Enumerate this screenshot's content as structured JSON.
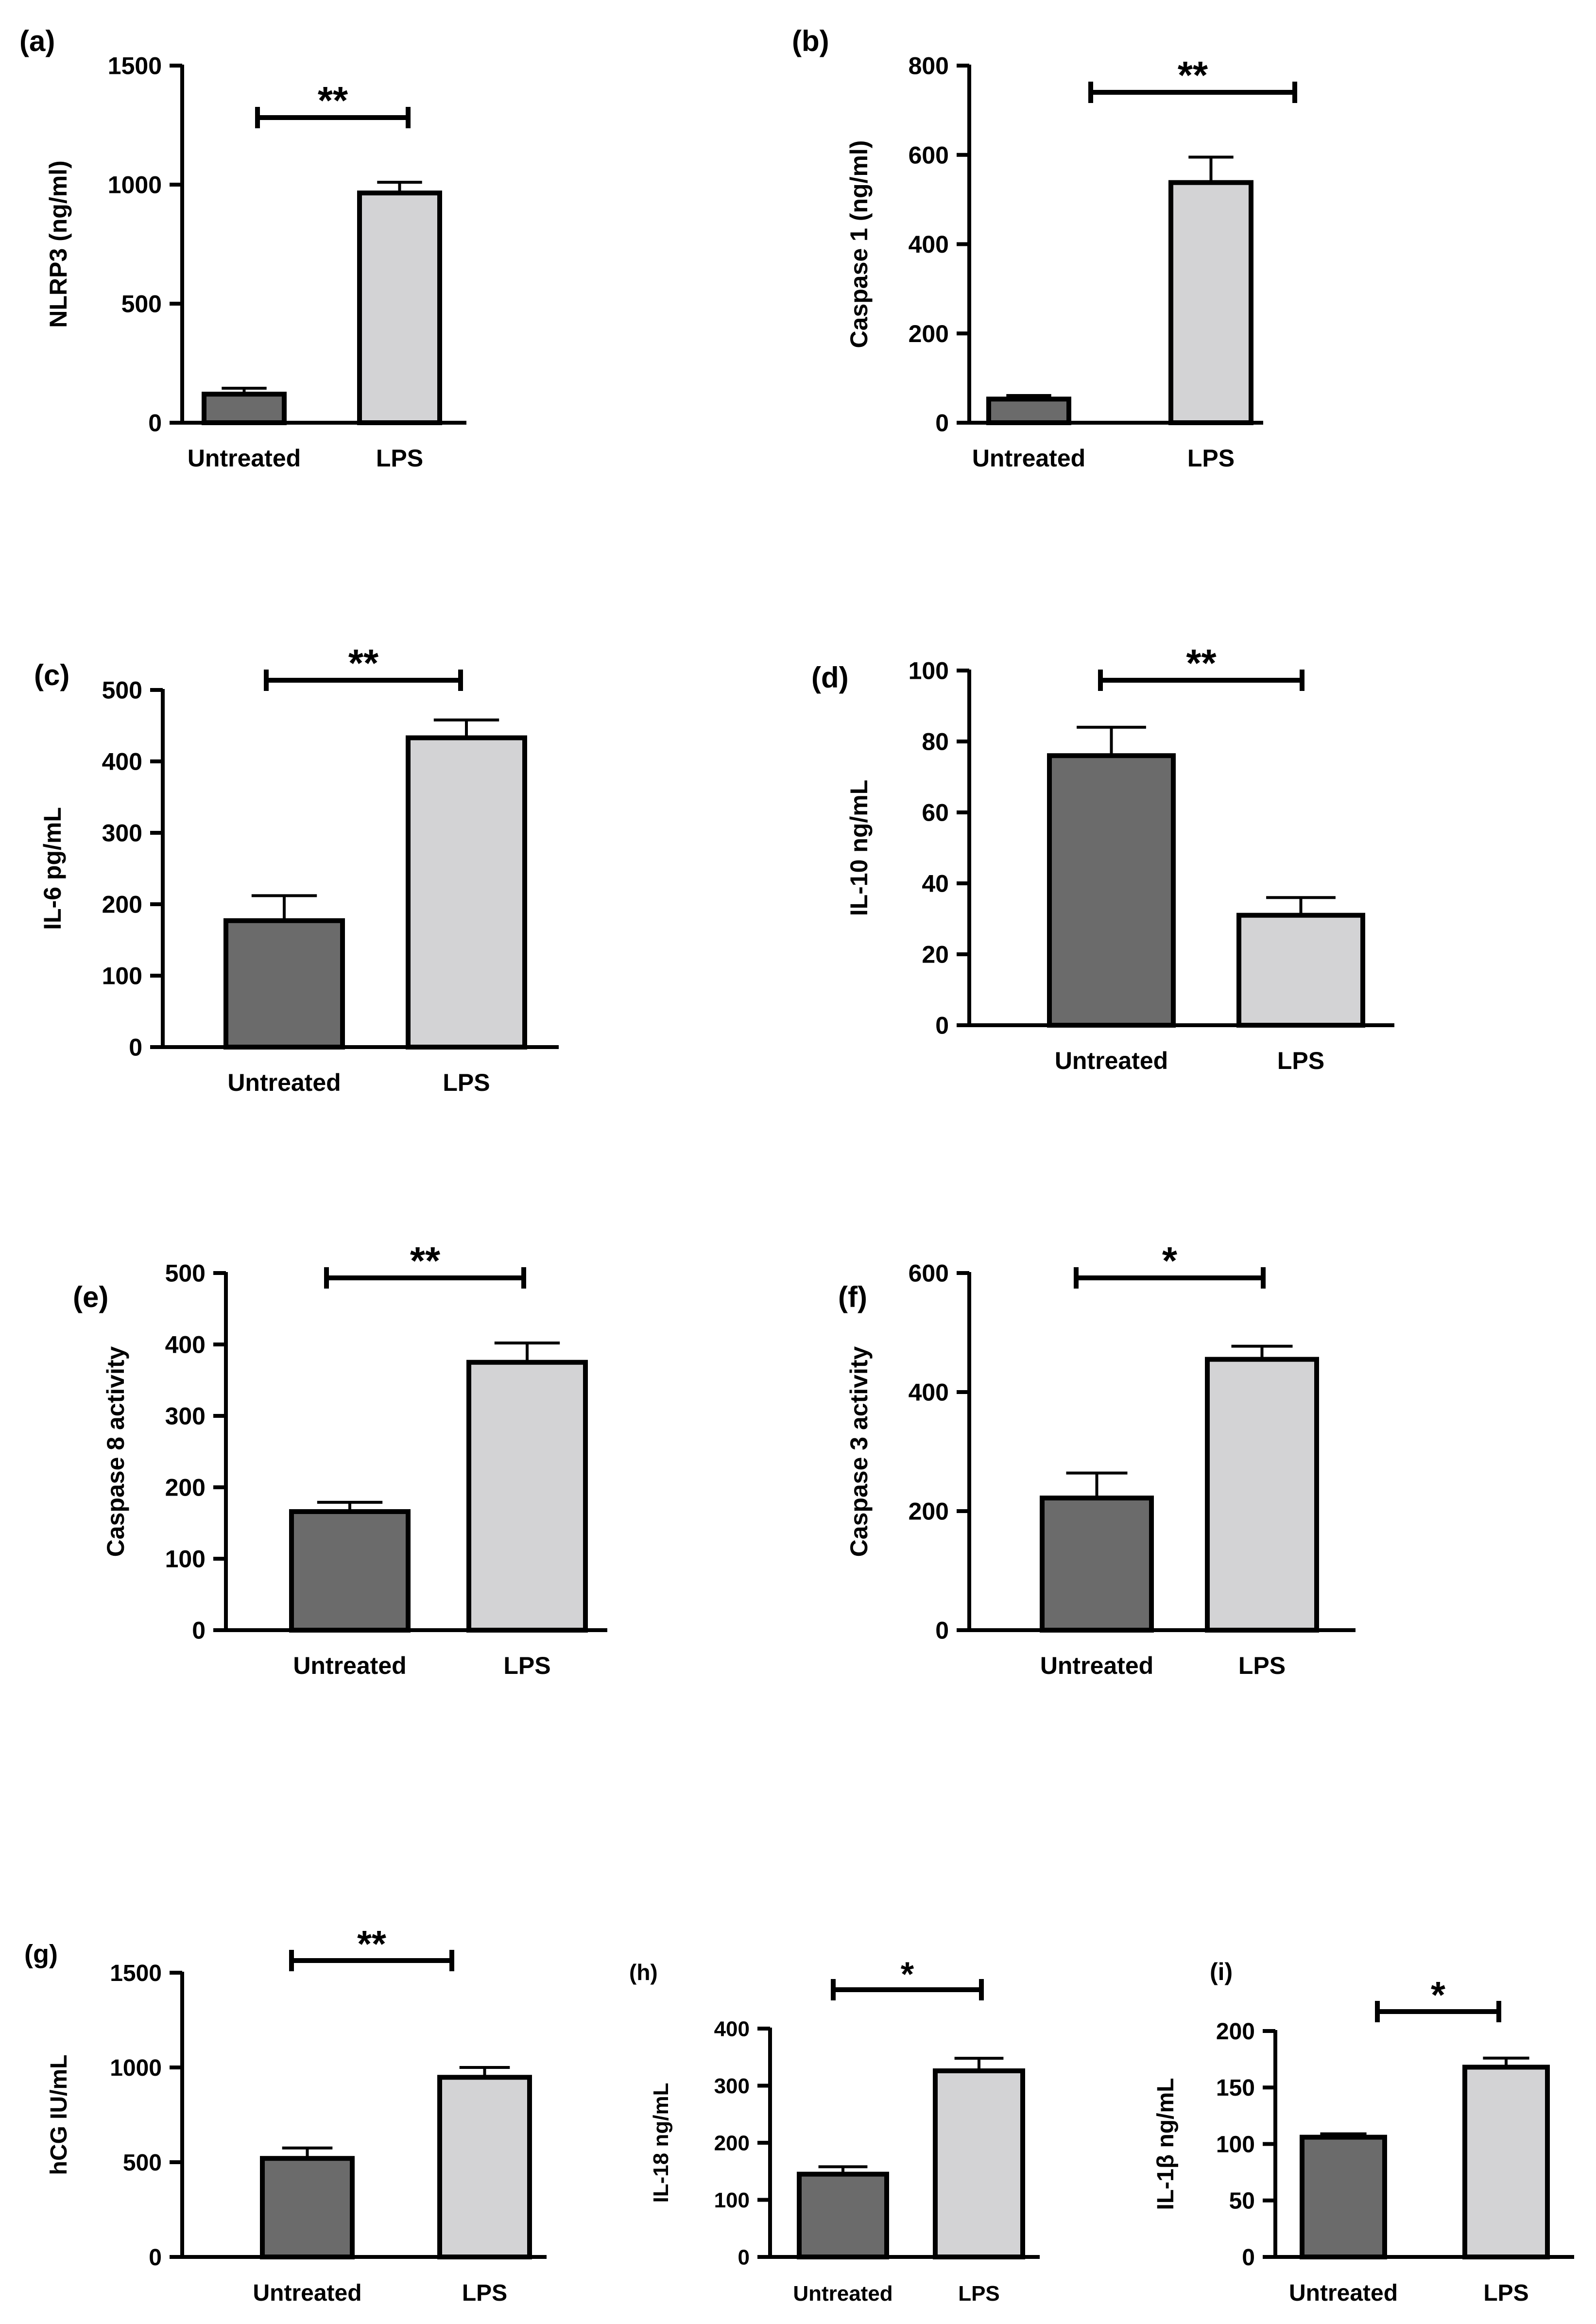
{
  "colors": {
    "untreated": "#6b6b6b",
    "lps": "#d3d3d5",
    "ink": "#000000"
  },
  "chart_data": [
    {
      "label": "(a)",
      "type": "bar",
      "ylabel": "NLRP3 (ng/ml)",
      "categories": [
        "Untreated",
        "LPS"
      ],
      "values": [
        120,
        965
      ],
      "errors": [
        25,
        45
      ],
      "ylim": [
        0,
        1500
      ],
      "ticks": [
        0,
        500,
        1000,
        1500
      ],
      "sig": "**"
    },
    {
      "label": "(b)",
      "type": "bar",
      "ylabel": "Caspase 1 (ng/ml)",
      "categories": [
        "Untreated",
        "LPS"
      ],
      "values": [
        53,
        538
      ],
      "errors": [
        8,
        57
      ],
      "ylim": [
        0,
        800
      ],
      "ticks": [
        0,
        200,
        400,
        600,
        800
      ],
      "sig": "**"
    },
    {
      "label": "(c)",
      "type": "bar",
      "ylabel": "IL-6 pg/mL",
      "categories": [
        "Untreated",
        "LPS"
      ],
      "values": [
        177,
        433
      ],
      "errors": [
        35,
        25
      ],
      "ylim": [
        0,
        500
      ],
      "ticks": [
        0,
        100,
        200,
        300,
        400,
        500
      ],
      "sig": "**"
    },
    {
      "label": "(d)",
      "type": "bar",
      "ylabel": "IL-10 ng/mL",
      "categories": [
        "Untreated",
        "LPS"
      ],
      "values": [
        76,
        31
      ],
      "errors": [
        8,
        5
      ],
      "ylim": [
        0,
        100
      ],
      "ticks": [
        0,
        20,
        40,
        60,
        80,
        100
      ],
      "sig": "**"
    },
    {
      "label": "(e)",
      "type": "bar",
      "ylabel": "Caspase 8 activity",
      "categories": [
        "Untreated",
        "LPS"
      ],
      "values": [
        166,
        375
      ],
      "errors": [
        13,
        27
      ],
      "ylim": [
        0,
        500
      ],
      "ticks": [
        0,
        100,
        200,
        300,
        400,
        500
      ],
      "sig": "**"
    },
    {
      "label": "(f)",
      "type": "bar",
      "ylabel": "Caspase 3 activity",
      "categories": [
        "Untreated",
        "LPS"
      ],
      "values": [
        222,
        455
      ],
      "errors": [
        42,
        22
      ],
      "ylim": [
        0,
        600
      ],
      "ticks": [
        0,
        200,
        400,
        600
      ],
      "sig": "*"
    },
    {
      "label": "(g)",
      "type": "bar",
      "ylabel": "hCG IU/mL",
      "categories": [
        "Untreated",
        "LPS"
      ],
      "values": [
        520,
        948
      ],
      "errors": [
        55,
        52
      ],
      "ylim": [
        0,
        1500
      ],
      "ticks": [
        0,
        500,
        1000,
        1500
      ],
      "sig": "**"
    },
    {
      "label": "(h)",
      "type": "bar",
      "ylabel": "IL-18 ng/mL",
      "categories": [
        "Untreated",
        "LPS"
      ],
      "values": [
        145,
        326
      ],
      "errors": [
        13,
        22
      ],
      "ylim": [
        0,
        400
      ],
      "ticks": [
        0,
        100,
        200,
        300,
        400
      ],
      "sig": "*"
    },
    {
      "label": "(i)",
      "type": "bar",
      "ylabel": "IL-1β ng/mL",
      "categories": [
        "Untreated",
        "LPS"
      ],
      "values": [
        106,
        168
      ],
      "errors": [
        3,
        8
      ],
      "ylim": [
        0,
        200
      ],
      "ticks": [
        0,
        50,
        100,
        150,
        200
      ],
      "sig": "*"
    }
  ]
}
